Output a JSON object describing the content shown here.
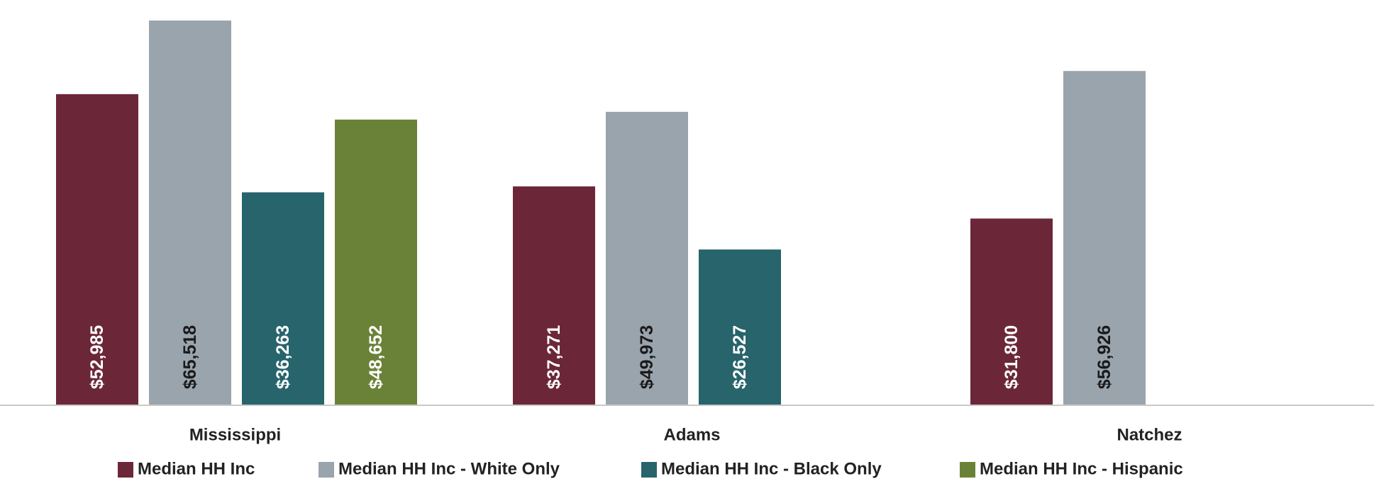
{
  "chart_data": {
    "type": "bar",
    "categories": [
      "Mississippi",
      "Adams",
      "Natchez"
    ],
    "series": [
      {
        "name": "Median HH Inc",
        "color": "#6b2738",
        "label_color": "#ffffff",
        "values": [
          52985,
          37271,
          31800
        ],
        "labels": [
          "$52,985",
          "$37,271",
          "$31,800"
        ]
      },
      {
        "name": "Median HH Inc - White Only",
        "color": "#9aa4ad",
        "label_color": "#1a1a1a",
        "values": [
          65518,
          49973,
          56926
        ],
        "labels": [
          "$65,518",
          "$49,973",
          "$56,926"
        ]
      },
      {
        "name": "Median HH Inc - Black Only",
        "color": "#27646b",
        "label_color": "#ffffff",
        "values": [
          36263,
          26527,
          null
        ],
        "labels": [
          "$36,263",
          "$26,527",
          null
        ]
      },
      {
        "name": "Median HH Inc - Hispanic",
        "color": "#6a8238",
        "label_color": "#ffffff",
        "values": [
          48652,
          null,
          null
        ],
        "labels": [
          "$48,652",
          null,
          null
        ]
      }
    ],
    "ylim": [
      0,
      66000
    ],
    "grid": false,
    "legend_position": "bottom",
    "axis_color": "#c9c9c9"
  }
}
